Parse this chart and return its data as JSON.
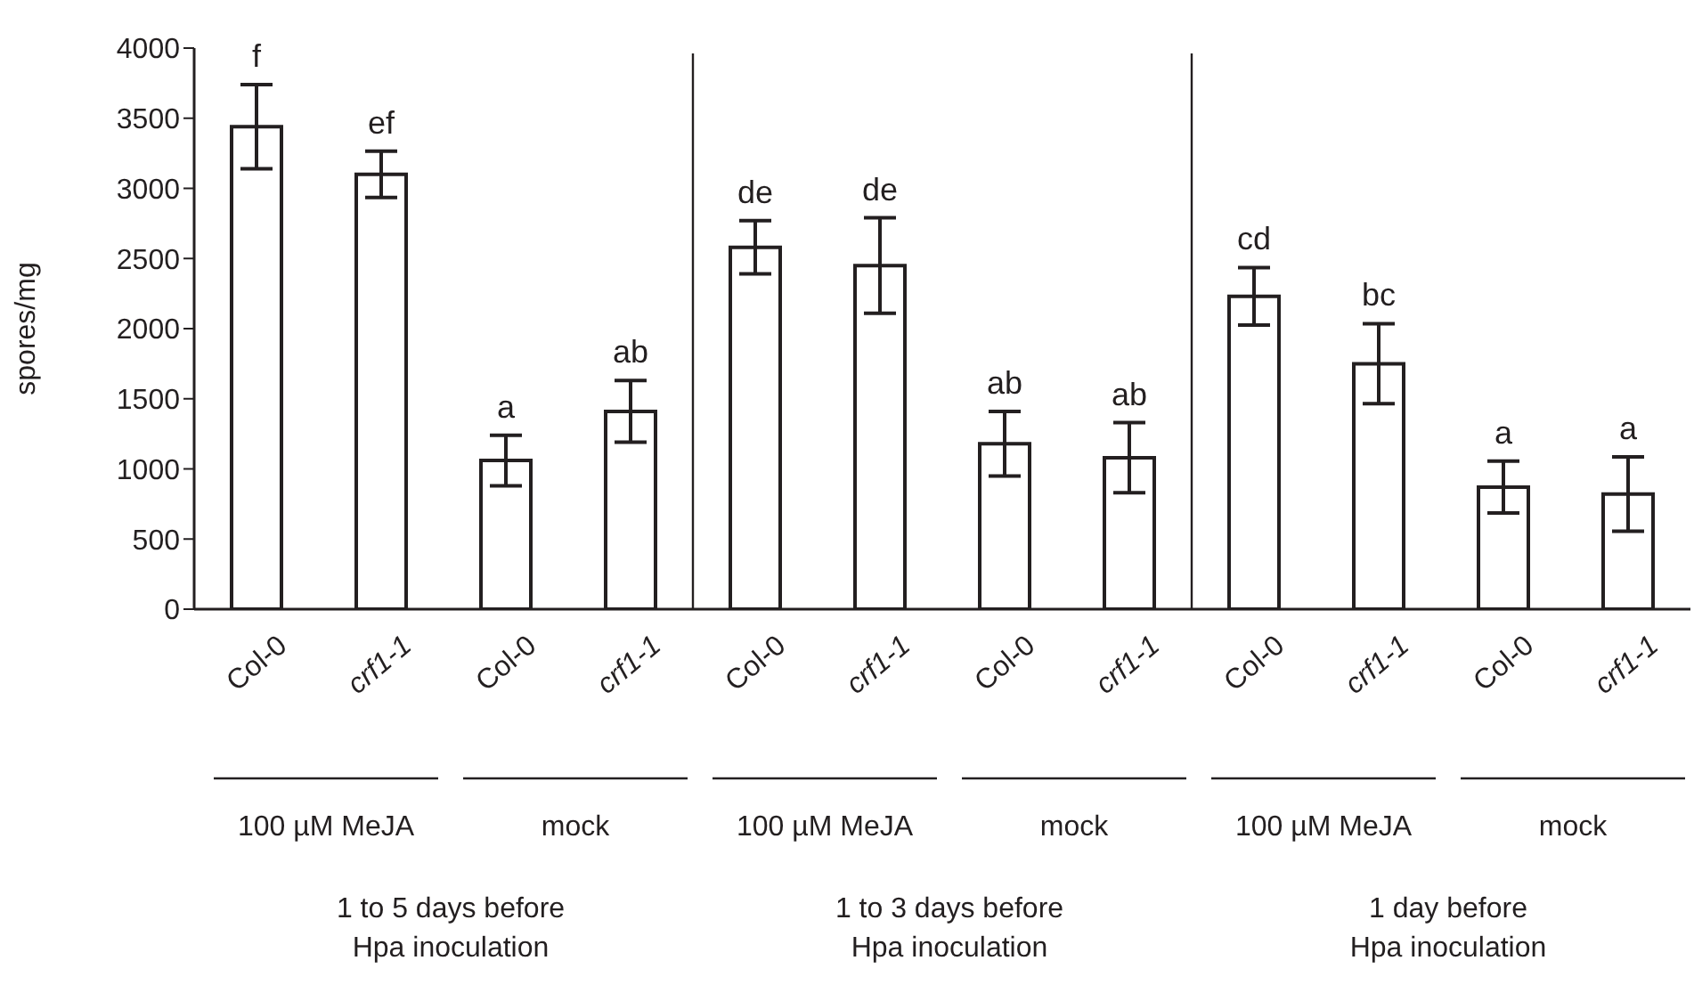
{
  "chart_data": {
    "type": "bar",
    "ylabel": "spores/mg",
    "categories": [
      "Col-0",
      "crf1-1",
      "Col-0",
      "crf1-1",
      "Col-0",
      "crf1-1",
      "Col-0",
      "crf1-1",
      "Col-0",
      "crf1-1",
      "Col-0",
      "crf1-1"
    ],
    "values": [
      3440,
      3100,
      1060,
      1410,
      2580,
      2450,
      1180,
      1080,
      2230,
      1750,
      870,
      820
    ],
    "errors": [
      300,
      165,
      180,
      220,
      190,
      340,
      230,
      250,
      205,
      285,
      185,
      265
    ],
    "value_labels": [
      "f",
      "ef",
      "a",
      "ab",
      "de",
      "de",
      "ab",
      "ab",
      "cd",
      "bc",
      "a",
      "a"
    ],
    "color": "#ffffff",
    "ylim": [
      0,
      4000
    ],
    "yticks": [
      0,
      500,
      1000,
      1500,
      2000,
      2500,
      3000,
      3500,
      4000
    ],
    "grid": false,
    "legend": false,
    "annotations": [
      "100 µM MeJA",
      "mock",
      "100 µM MeJA",
      "mock",
      "100 µM MeJA",
      "mock",
      "1 to 5 days before\nHpa inoculation",
      "1 to 3 days before\nHpa inoculation",
      "1 day before\nHpa inoculation"
    ]
  }
}
